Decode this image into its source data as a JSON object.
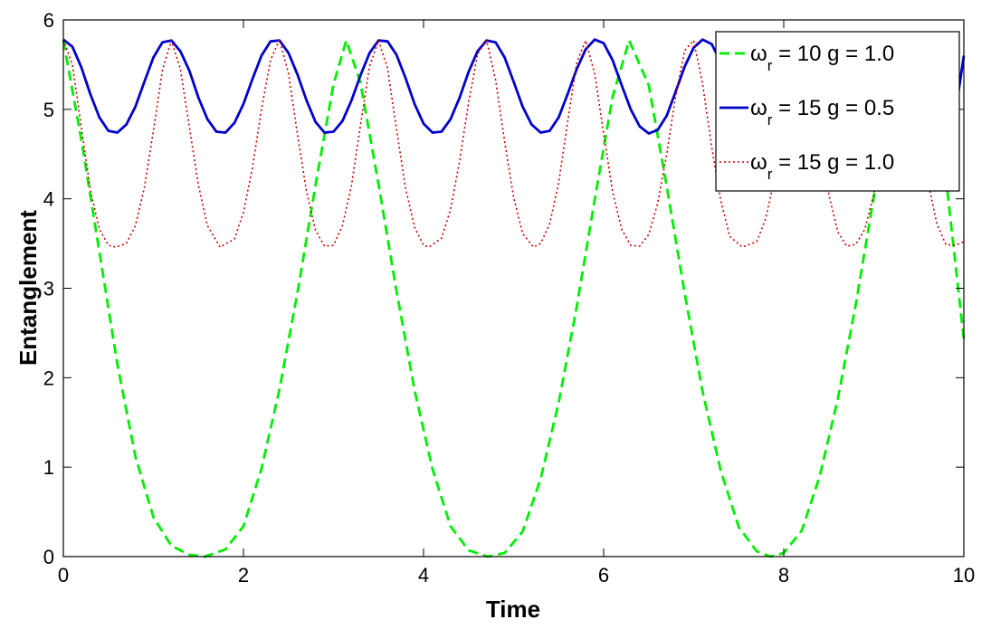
{
  "chart_data": {
    "type": "line",
    "xlabel": "Time",
    "ylabel": "Entanglement",
    "xlim": [
      0,
      10
    ],
    "ylim": [
      0,
      6
    ],
    "xticks": [
      "0",
      "2",
      "4",
      "6",
      "8",
      "10"
    ],
    "yticks": [
      "0",
      "1",
      "2",
      "3",
      "4",
      "5",
      "6"
    ],
    "grid": false,
    "legend_position": "top-right",
    "series": [
      {
        "name_prefix": "ω",
        "name_sub": "r",
        "name_rest": " = 10 g = 1.0",
        "color": "#00ee00",
        "style": "dashed",
        "x": [
          0.0,
          0.2,
          0.4,
          0.6,
          0.8,
          1.0,
          1.2,
          1.4,
          1.571,
          1.8,
          2.0,
          2.2,
          2.4,
          2.6,
          2.8,
          3.0,
          3.142,
          3.3,
          3.5,
          3.7,
          3.9,
          4.1,
          4.3,
          4.5,
          4.712,
          4.9,
          5.1,
          5.3,
          5.5,
          5.7,
          5.9,
          6.1,
          6.283,
          6.5,
          6.7,
          6.9,
          7.1,
          7.3,
          7.5,
          7.7,
          7.854,
          8.0,
          8.2,
          8.4,
          8.6,
          8.8,
          9.0,
          9.2,
          9.425,
          9.6,
          9.8,
          10.0
        ],
        "y": [
          5.77,
          4.66,
          3.41,
          2.15,
          1.12,
          0.44,
          0.12,
          0.02,
          0.0,
          0.08,
          0.34,
          0.98,
          1.87,
          2.95,
          4.15,
          5.28,
          5.77,
          5.3,
          4.16,
          2.97,
          1.86,
          0.98,
          0.34,
          0.07,
          0.0,
          0.04,
          0.28,
          0.87,
          1.72,
          2.79,
          3.99,
          5.14,
          5.77,
          5.27,
          4.14,
          2.94,
          1.84,
          0.96,
          0.33,
          0.06,
          0.0,
          0.04,
          0.29,
          0.9,
          1.76,
          2.82,
          4.02,
          5.16,
          5.77,
          5.36,
          4.24,
          2.43
        ]
      },
      {
        "name_prefix": "ω",
        "name_sub": "r",
        "name_rest": " = 15 g = 0.5",
        "color": "#0000cc",
        "style": "solid",
        "x": [
          0.0,
          0.1,
          0.2,
          0.3,
          0.4,
          0.5,
          0.6,
          0.7,
          0.8,
          0.9,
          1.0,
          1.1,
          1.2,
          1.3,
          1.4,
          1.5,
          1.6,
          1.7,
          1.8,
          1.9,
          2.0,
          2.1,
          2.2,
          2.3,
          2.4,
          2.5,
          2.6,
          2.7,
          2.8,
          2.9,
          3.0,
          3.1,
          3.2,
          3.3,
          3.4,
          3.5,
          3.6,
          3.7,
          3.8,
          3.9,
          4.0,
          4.1,
          4.2,
          4.3,
          4.4,
          4.5,
          4.6,
          4.7,
          4.8,
          4.9,
          5.0,
          5.1,
          5.2,
          5.3,
          5.4,
          5.5,
          5.6,
          5.7,
          5.8,
          5.9,
          6.0,
          6.1,
          6.2,
          6.3,
          6.4,
          6.5,
          6.6,
          6.7,
          6.8,
          6.9,
          7.0,
          7.1,
          7.2,
          7.3,
          7.4,
          7.5,
          7.6,
          7.7,
          7.8,
          7.9,
          8.0,
          8.1,
          8.2,
          8.3,
          8.4,
          8.5,
          8.6,
          8.7,
          8.8,
          8.9,
          9.0,
          9.1,
          9.2,
          9.3,
          9.4,
          9.5,
          9.6,
          9.7,
          9.8,
          9.9,
          10.0
        ],
        "y": [
          5.78,
          5.7,
          5.47,
          5.17,
          4.91,
          4.76,
          4.74,
          4.83,
          5.03,
          5.31,
          5.58,
          5.75,
          5.77,
          5.65,
          5.43,
          5.13,
          4.89,
          4.75,
          4.74,
          4.85,
          5.06,
          5.34,
          5.6,
          5.76,
          5.77,
          5.63,
          5.39,
          5.1,
          4.86,
          4.74,
          4.75,
          4.87,
          5.1,
          5.38,
          5.63,
          5.77,
          5.76,
          5.61,
          5.35,
          5.06,
          4.84,
          4.74,
          4.75,
          4.89,
          5.13,
          5.42,
          5.65,
          5.77,
          5.75,
          5.58,
          5.31,
          5.03,
          4.83,
          4.74,
          4.76,
          4.91,
          5.17,
          5.45,
          5.67,
          5.78,
          5.74,
          5.55,
          5.27,
          5.0,
          4.81,
          4.73,
          4.77,
          4.93,
          5.2,
          5.48,
          5.69,
          5.78,
          5.73,
          5.53,
          5.24,
          4.97,
          4.8,
          4.74,
          4.78,
          4.96,
          5.24,
          5.51,
          5.71,
          5.78,
          5.72,
          5.49,
          5.21,
          4.95,
          4.78,
          4.73,
          4.79,
          4.98,
          5.27,
          5.54,
          5.72,
          5.78,
          5.71,
          5.46,
          5.17,
          4.92,
          5.6
        ]
      },
      {
        "name_prefix": "ω",
        "name_sub": "r",
        "name_rest": " = 15 g = 1.0",
        "color": "#cc0000",
        "style": "dotted",
        "x": [
          0.0,
          0.1,
          0.2,
          0.3,
          0.4,
          0.5,
          0.58,
          0.7,
          0.8,
          0.9,
          1.0,
          1.1,
          1.2,
          1.3,
          1.4,
          1.5,
          1.6,
          1.74,
          1.9,
          2.0,
          2.1,
          2.2,
          2.3,
          2.4,
          2.5,
          2.6,
          2.7,
          2.8,
          2.9,
          3.0,
          3.1,
          3.2,
          3.3,
          3.4,
          3.5,
          3.6,
          3.7,
          3.8,
          3.9,
          4.0,
          4.06,
          4.2,
          4.3,
          4.4,
          4.5,
          4.6,
          4.7,
          4.8,
          4.9,
          5.0,
          5.1,
          5.22,
          5.3,
          5.4,
          5.5,
          5.6,
          5.7,
          5.8,
          5.9,
          6.0,
          6.1,
          6.2,
          6.3,
          6.4,
          6.5,
          6.6,
          6.7,
          6.8,
          6.9,
          7.0,
          7.1,
          7.2,
          7.3,
          7.4,
          7.54,
          7.7,
          7.8,
          7.9,
          8.0,
          8.1,
          8.2,
          8.3,
          8.4,
          8.5,
          8.6,
          8.7,
          8.8,
          8.9,
          9.0,
          9.1,
          9.2,
          9.3,
          9.4,
          9.5,
          9.6,
          9.7,
          9.8,
          9.9,
          10.0
        ],
        "y": [
          5.78,
          5.5,
          4.8,
          4.1,
          3.66,
          3.48,
          3.46,
          3.5,
          3.7,
          4.13,
          4.76,
          5.44,
          5.77,
          5.45,
          4.8,
          4.15,
          3.7,
          3.46,
          3.55,
          3.85,
          4.35,
          5.0,
          5.55,
          5.78,
          5.4,
          4.72,
          4.08,
          3.65,
          3.47,
          3.48,
          3.7,
          4.15,
          4.82,
          5.48,
          5.77,
          5.46,
          4.78,
          4.12,
          3.68,
          3.48,
          3.46,
          3.56,
          3.88,
          4.42,
          5.08,
          5.62,
          5.77,
          5.33,
          4.64,
          4.02,
          3.61,
          3.46,
          3.5,
          3.72,
          4.18,
          4.86,
          5.52,
          5.77,
          5.4,
          4.73,
          4.08,
          3.66,
          3.48,
          3.47,
          3.6,
          3.95,
          4.5,
          5.15,
          5.66,
          5.77,
          5.28,
          4.58,
          3.98,
          3.58,
          3.46,
          3.52,
          3.78,
          4.25,
          4.93,
          5.56,
          5.77,
          5.36,
          4.68,
          4.05,
          3.63,
          3.47,
          3.49,
          3.66,
          4.05,
          4.64,
          5.3,
          5.74,
          5.55,
          4.88,
          4.2,
          3.72,
          3.49,
          3.48,
          3.52
        ]
      }
    ]
  }
}
